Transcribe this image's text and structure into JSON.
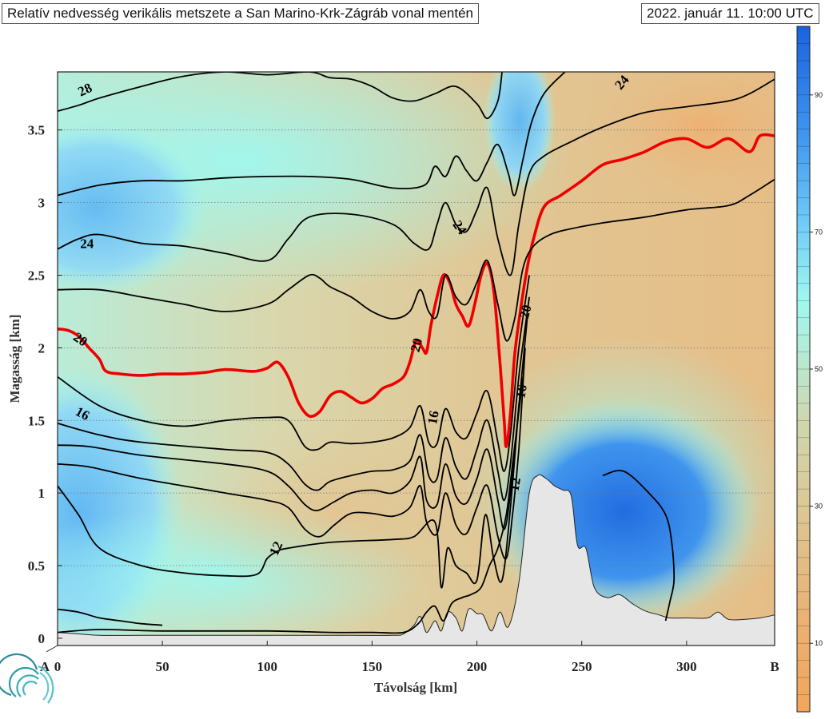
{
  "title": "Relatív nedvesség verikális metszete a San Marino-Krk-Zágráb vonal mentén",
  "timestamp": "2022. január 11. 10:00 UTC",
  "chart_data": {
    "type": "heatmap",
    "title": "Relatív nedvesség verikális metszete a San Marino-Krk-Zágráb vonal mentén",
    "xlabel": "Távolság [km]",
    "ylabel": "Magasság [km]",
    "xlim": [
      0,
      342
    ],
    "ylim": [
      -0.05,
      3.9
    ],
    "x_ticks": [
      "0",
      "50",
      "100",
      "150",
      "200",
      "250",
      "300"
    ],
    "x_tick_values": [
      0,
      50,
      100,
      150,
      200,
      250,
      300
    ],
    "y_ticks": [
      "0",
      "0.5",
      "1",
      "1.5",
      "2",
      "2.5",
      "3",
      "3.5"
    ],
    "y_tick_values": [
      0,
      0.5,
      1,
      1.5,
      2,
      2.5,
      3,
      3.5
    ],
    "endpoint_labels": {
      "start": "A",
      "end": "B"
    },
    "grid": "horizontal dotted",
    "colorbar": {
      "ticks": [
        "10",
        "30",
        "50",
        "70",
        "90"
      ],
      "tick_values": [
        10,
        30,
        50,
        70,
        90
      ],
      "range": [
        0,
        100
      ],
      "colors": [
        "#f2a65a",
        "#e3c28c",
        "#cfd3a8",
        "#b6ead4",
        "#9ff8f0",
        "#6cc8f8",
        "#3d93ee",
        "#1a63e0"
      ]
    },
    "terrain": {
      "x": [
        0,
        10,
        20,
        40,
        60,
        80,
        100,
        120,
        140,
        160,
        165,
        170,
        173,
        176,
        180,
        183,
        186,
        190,
        193,
        196,
        200,
        203,
        207,
        211,
        215,
        220,
        225,
        229,
        233,
        237,
        241,
        245,
        248,
        252,
        256,
        262,
        268,
        274,
        280,
        287,
        292,
        300,
        310,
        315,
        320,
        328,
        335,
        342
      ],
      "y": [
        0.04,
        0.03,
        0.02,
        0.02,
        0.02,
        0.02,
        0.02,
        0.02,
        0.02,
        0.02,
        0.03,
        0.09,
        0.15,
        0.04,
        0.12,
        0.05,
        0.18,
        0.14,
        0.05,
        0.2,
        0.17,
        0.16,
        0.05,
        0.18,
        0.08,
        0.38,
        1.0,
        1.12,
        1.1,
        1.05,
        1.02,
        0.98,
        0.64,
        0.62,
        0.35,
        0.28,
        0.3,
        0.24,
        0.19,
        0.16,
        0.14,
        0.14,
        0.14,
        0.18,
        0.13,
        0.13,
        0.14,
        0.16
      ]
    },
    "contours": [
      {
        "level": "12",
        "highlight": false,
        "x": [
          0,
          20,
          50,
          100,
          130,
          150,
          165,
          172,
          176,
          180,
          184,
          188,
          193,
          197,
          202,
          206,
          210,
          214,
          217,
          222
        ],
        "y": [
          0.04,
          0.06,
          0.05,
          0.05,
          0.04,
          0.04,
          0.04,
          0.1,
          0.18,
          0.22,
          0.12,
          0.24,
          0.28,
          0.3,
          0.35,
          0.5,
          0.62,
          0.85,
          1.2,
          1.8
        ]
      },
      {
        "level": "",
        "highlight": false,
        "x": [
          0,
          10,
          20,
          40,
          60,
          80,
          95,
          100,
          105,
          110,
          130,
          160,
          170,
          180,
          183,
          186,
          190,
          195,
          200,
          204,
          208,
          212,
          216,
          220
        ],
        "y": [
          1.05,
          0.85,
          0.62,
          0.5,
          0.45,
          0.43,
          0.44,
          0.55,
          0.6,
          0.62,
          0.66,
          0.68,
          0.7,
          0.8,
          0.35,
          0.62,
          0.5,
          0.45,
          0.4,
          0.85,
          0.55,
          0.4,
          0.9,
          1.6
        ]
      },
      {
        "level": "",
        "highlight": false,
        "x": [
          0,
          15,
          40,
          80,
          100,
          110,
          118,
          125,
          132,
          140,
          150,
          160,
          168,
          173,
          176,
          181,
          185,
          190,
          195,
          200,
          205,
          210,
          214,
          217,
          220,
          223
        ],
        "y": [
          1.2,
          1.18,
          1.1,
          1.0,
          0.95,
          0.9,
          0.75,
          0.7,
          0.78,
          0.86,
          0.86,
          0.84,
          0.9,
          1.05,
          0.8,
          0.72,
          1.0,
          0.78,
          0.72,
          0.9,
          1.05,
          0.7,
          0.55,
          0.85,
          1.3,
          2.0
        ]
      },
      {
        "level": "",
        "highlight": false,
        "x": [
          0,
          15,
          40,
          80,
          100,
          110,
          118,
          124,
          132,
          140,
          150,
          160,
          168,
          173,
          176,
          181,
          185,
          190,
          195,
          200,
          205,
          210,
          213,
          216,
          220,
          224
        ],
        "y": [
          1.33,
          1.32,
          1.26,
          1.2,
          1.15,
          1.05,
          0.92,
          0.88,
          0.94,
          1.0,
          1.02,
          1.0,
          1.08,
          1.25,
          0.95,
          0.92,
          1.2,
          0.98,
          0.93,
          1.1,
          1.3,
          0.95,
          0.75,
          1.0,
          1.6,
          2.2
        ]
      },
      {
        "level": "",
        "highlight": false,
        "x": [
          0,
          20,
          40,
          80,
          100,
          110,
          118,
          124,
          130,
          140,
          150,
          160,
          168,
          173,
          177,
          181,
          185,
          190,
          195,
          200,
          205,
          210,
          213,
          216,
          220,
          225
        ],
        "y": [
          1.48,
          1.4,
          1.35,
          1.3,
          1.28,
          1.2,
          1.06,
          1.02,
          1.08,
          1.12,
          1.15,
          1.16,
          1.22,
          1.4,
          1.12,
          1.1,
          1.38,
          1.18,
          1.1,
          1.3,
          1.5,
          1.15,
          0.95,
          1.2,
          1.8,
          2.35
        ]
      },
      {
        "level": "16",
        "highlight": false,
        "x": [
          0,
          20,
          40,
          60,
          80,
          100,
          110,
          118,
          124,
          130,
          140,
          150,
          160,
          168,
          173,
          177,
          181,
          185,
          190,
          195,
          200,
          205,
          210,
          213,
          216,
          220,
          225
        ],
        "y": [
          1.8,
          1.6,
          1.5,
          1.46,
          1.5,
          1.52,
          1.5,
          1.32,
          1.3,
          1.35,
          1.34,
          1.35,
          1.38,
          1.45,
          1.6,
          1.35,
          1.34,
          1.58,
          1.42,
          1.38,
          1.55,
          1.7,
          1.35,
          1.15,
          1.4,
          2.0,
          2.5
        ]
      },
      {
        "level": "20",
        "highlight": true,
        "x": [
          0,
          5,
          10,
          15,
          20,
          23,
          30,
          40,
          50,
          60,
          70,
          80,
          90,
          95,
          100,
          105,
          110,
          115,
          120,
          125,
          130,
          135,
          140,
          145,
          150,
          155,
          160,
          165,
          168,
          171,
          174,
          176,
          178,
          181,
          184,
          187,
          190,
          193,
          196,
          199,
          202,
          205,
          208,
          211,
          213,
          214,
          216,
          218,
          221,
          224,
          227,
          232,
          240,
          250,
          260,
          270,
          280,
          290,
          300,
          310,
          320,
          330,
          335,
          342
        ],
        "y": [
          2.13,
          2.12,
          2.08,
          2.0,
          1.92,
          1.84,
          1.82,
          1.81,
          1.82,
          1.82,
          1.83,
          1.85,
          1.84,
          1.84,
          1.86,
          1.9,
          1.8,
          1.62,
          1.53,
          1.56,
          1.67,
          1.7,
          1.66,
          1.62,
          1.65,
          1.72,
          1.75,
          1.8,
          1.9,
          2.05,
          2.0,
          1.97,
          2.15,
          2.35,
          2.5,
          2.45,
          2.3,
          2.22,
          2.15,
          2.3,
          2.5,
          2.58,
          2.4,
          1.9,
          1.5,
          1.32,
          1.55,
          1.95,
          2.28,
          2.55,
          2.75,
          2.97,
          3.05,
          3.15,
          3.26,
          3.3,
          3.35,
          3.42,
          3.44,
          3.38,
          3.44,
          3.35,
          3.46,
          3.46
        ]
      },
      {
        "level": "",
        "highlight": false,
        "x": [
          0,
          20,
          40,
          60,
          80,
          100,
          110,
          120,
          125,
          130,
          140,
          150,
          160,
          168,
          173,
          177,
          181,
          185,
          190,
          195,
          200,
          205,
          210,
          214,
          218,
          222,
          227,
          235,
          245,
          260,
          280,
          300,
          320,
          330,
          342
        ],
        "y": [
          2.4,
          2.4,
          2.35,
          2.3,
          2.25,
          2.3,
          2.4,
          2.5,
          2.48,
          2.42,
          2.35,
          2.25,
          2.2,
          2.25,
          2.4,
          2.25,
          2.22,
          2.5,
          2.35,
          2.3,
          2.45,
          2.6,
          2.3,
          2.05,
          2.2,
          2.55,
          2.7,
          2.78,
          2.82,
          2.86,
          2.9,
          2.95,
          2.98,
          3.05,
          3.16
        ]
      },
      {
        "level": "24",
        "highlight": false,
        "x": [
          0,
          10,
          20,
          40,
          60,
          80,
          100,
          110,
          120,
          140,
          160,
          170,
          177,
          181,
          185,
          190,
          195,
          200,
          205,
          210,
          216,
          220,
          225,
          232,
          245,
          260,
          280,
          300,
          320,
          330,
          342
        ],
        "y": [
          2.68,
          2.75,
          2.78,
          2.72,
          2.7,
          2.65,
          2.6,
          2.75,
          2.9,
          2.92,
          2.85,
          2.72,
          2.68,
          2.85,
          3.0,
          2.85,
          2.8,
          2.95,
          3.1,
          2.75,
          2.5,
          2.85,
          3.2,
          3.32,
          3.42,
          3.52,
          3.62,
          3.66,
          3.7,
          3.75,
          3.85
        ]
      },
      {
        "level": "",
        "highlight": false,
        "x": [
          0,
          20,
          40,
          60,
          80,
          100,
          120,
          140,
          160,
          175,
          180,
          185,
          190,
          195,
          200,
          205,
          210,
          215,
          218,
          222,
          226,
          232,
          242
        ],
        "y": [
          3.05,
          3.12,
          3.15,
          3.15,
          3.17,
          3.18,
          3.18,
          3.16,
          3.1,
          3.12,
          3.25,
          3.18,
          3.32,
          3.22,
          3.15,
          3.28,
          3.4,
          3.2,
          3.05,
          3.3,
          3.55,
          3.75,
          3.9
        ]
      },
      {
        "level": "28",
        "highlight": false,
        "x": [
          0,
          10,
          20,
          40,
          60,
          80,
          100,
          120,
          130,
          140,
          150,
          160,
          170,
          180,
          190,
          200,
          205,
          210,
          212
        ],
        "y": [
          3.63,
          3.67,
          3.72,
          3.8,
          3.87,
          3.9,
          3.88,
          3.9,
          3.86,
          3.85,
          3.8,
          3.72,
          3.7,
          3.75,
          3.8,
          3.68,
          3.58,
          3.7,
          3.9
        ]
      },
      {
        "level": "",
        "highlight": false,
        "x": [
          0,
          10,
          20,
          30,
          40,
          50
        ],
        "y": [
          0.2,
          0.18,
          0.14,
          0.12,
          0.1,
          0.09
        ]
      },
      {
        "level": "",
        "highlight": false,
        "x": [
          260,
          270,
          282,
          290,
          293,
          294,
          292,
          290
        ],
        "y": [
          1.12,
          1.15,
          1.0,
          0.85,
          0.65,
          0.4,
          0.25,
          0.12
        ]
      }
    ],
    "contour_labels": [
      {
        "text": "28",
        "x": 13,
        "y": 3.78,
        "rotate": -25,
        "color": "#000"
      },
      {
        "text": "24",
        "x": 14,
        "y": 2.72,
        "rotate": 0,
        "color": "#000"
      },
      {
        "text": "24",
        "x": 192,
        "y": 2.83,
        "rotate": 55,
        "color": "#000"
      },
      {
        "text": "24",
        "x": 269,
        "y": 3.83,
        "rotate": -50,
        "color": "#000"
      },
      {
        "text": "20",
        "x": 11,
        "y": 2.06,
        "rotate": 35,
        "color": "#e00000"
      },
      {
        "text": "20",
        "x": 171,
        "y": 2.02,
        "rotate": -75,
        "color": "#e00000"
      },
      {
        "text": "20",
        "x": 223,
        "y": 2.25,
        "rotate": -75,
        "color": "#e00000"
      },
      {
        "text": "16",
        "x": 12,
        "y": 1.55,
        "rotate": 28,
        "color": "#000"
      },
      {
        "text": "16",
        "x": 179,
        "y": 1.52,
        "rotate": -80,
        "color": "#000"
      },
      {
        "text": "16",
        "x": 221,
        "y": 1.7,
        "rotate": -80,
        "color": "#000"
      },
      {
        "text": "12",
        "x": 104,
        "y": 0.62,
        "rotate": -65,
        "color": "#000"
      },
      {
        "text": "12",
        "x": 218,
        "y": 1.06,
        "rotate": -80,
        "color": "#000"
      }
    ]
  }
}
